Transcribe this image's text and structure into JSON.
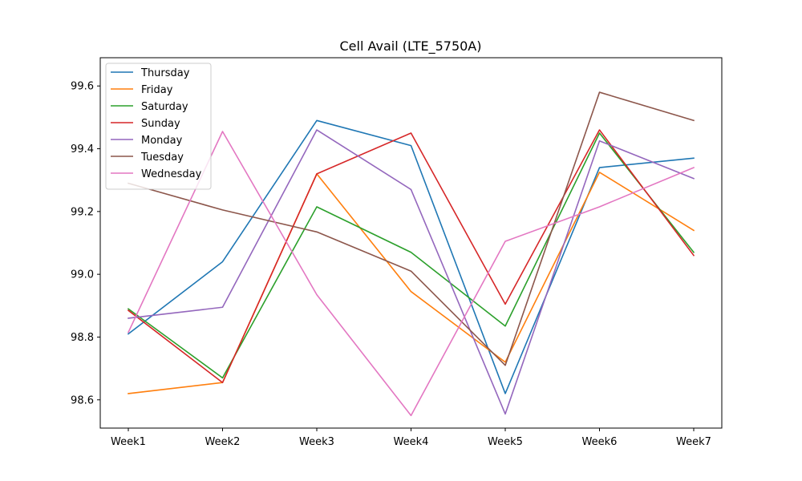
{
  "chart_data": {
    "type": "line",
    "title": "Cell Avail (LTE_5750A)",
    "xlabel": "",
    "ylabel": "",
    "categories": [
      "Week1",
      "Week2",
      "Week3",
      "Week4",
      "Week5",
      "Week6",
      "Week7"
    ],
    "ylim": [
      98.51,
      99.69
    ],
    "yticks": [
      98.6,
      98.8,
      99.0,
      99.2,
      99.4,
      99.6
    ],
    "ytick_labels": [
      "98.6",
      "98.8",
      "99.0",
      "99.2",
      "99.4",
      "99.6"
    ],
    "grid": false,
    "legend_position": "upper-left",
    "series": [
      {
        "name": "Thursday",
        "color": "#1f77b4",
        "values": [
          98.81,
          99.04,
          99.49,
          99.41,
          98.62,
          99.34,
          99.37
        ]
      },
      {
        "name": "Friday",
        "color": "#ff7f0e",
        "values": [
          98.62,
          98.655,
          99.32,
          98.945,
          98.72,
          99.325,
          99.14
        ]
      },
      {
        "name": "Saturday",
        "color": "#2ca02c",
        "values": [
          98.89,
          98.67,
          99.215,
          99.07,
          98.835,
          99.45,
          99.07
        ]
      },
      {
        "name": "Sunday",
        "color": "#d62728",
        "values": [
          98.885,
          98.655,
          99.32,
          99.45,
          98.905,
          99.46,
          99.06
        ]
      },
      {
        "name": "Monday",
        "color": "#9467bd",
        "values": [
          98.86,
          98.895,
          99.46,
          99.27,
          98.555,
          99.425,
          99.305
        ]
      },
      {
        "name": "Tuesday",
        "color": "#8c564b",
        "values": [
          99.29,
          99.205,
          99.135,
          99.01,
          98.71,
          99.58,
          99.49
        ]
      },
      {
        "name": "Wednesday",
        "color": "#e377c2",
        "values": [
          98.815,
          99.455,
          98.935,
          98.55,
          99.105,
          99.215,
          99.34
        ]
      }
    ]
  }
}
